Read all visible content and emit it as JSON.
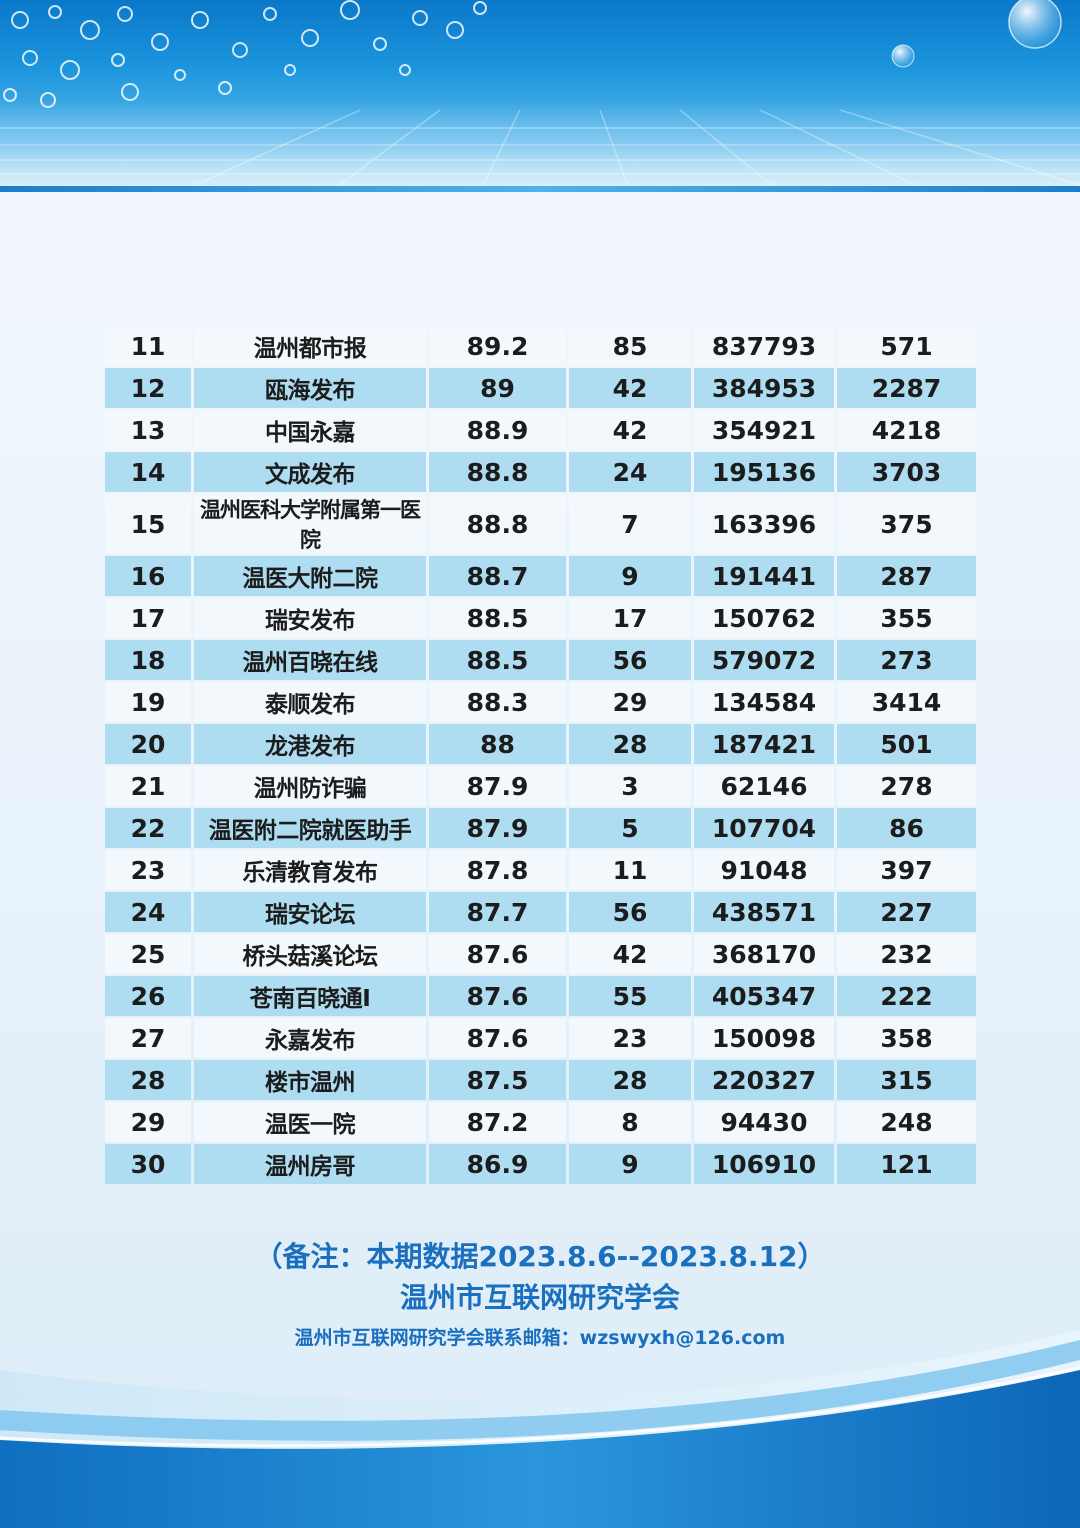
{
  "table": {
    "rows": [
      {
        "rank": "11",
        "name": "温州都市报",
        "score": "89.2",
        "posts": "85",
        "reads": "837793",
        "likes": "571"
      },
      {
        "rank": "12",
        "name": "瓯海发布",
        "score": "89",
        "posts": "42",
        "reads": "384953",
        "likes": "2287"
      },
      {
        "rank": "13",
        "name": "中国永嘉",
        "score": "88.9",
        "posts": "42",
        "reads": "354921",
        "likes": "4218"
      },
      {
        "rank": "14",
        "name": "文成发布",
        "score": "88.8",
        "posts": "24",
        "reads": "195136",
        "likes": "3703"
      },
      {
        "rank": "15",
        "name": "温州医科大学附属第一医院",
        "score": "88.8",
        "posts": "7",
        "reads": "163396",
        "likes": "375"
      },
      {
        "rank": "16",
        "name": "温医大附二院",
        "score": "88.7",
        "posts": "9",
        "reads": "191441",
        "likes": "287"
      },
      {
        "rank": "17",
        "name": "瑞安发布",
        "score": "88.5",
        "posts": "17",
        "reads": "150762",
        "likes": "355"
      },
      {
        "rank": "18",
        "name": "温州百晓在线",
        "score": "88.5",
        "posts": "56",
        "reads": "579072",
        "likes": "273"
      },
      {
        "rank": "19",
        "name": "泰顺发布",
        "score": "88.3",
        "posts": "29",
        "reads": "134584",
        "likes": "3414"
      },
      {
        "rank": "20",
        "name": "龙港发布",
        "score": "88",
        "posts": "28",
        "reads": "187421",
        "likes": "501"
      },
      {
        "rank": "21",
        "name": "温州防诈骗",
        "score": "87.9",
        "posts": "3",
        "reads": "62146",
        "likes": "278"
      },
      {
        "rank": "22",
        "name": "温医附二院就医助手",
        "score": "87.9",
        "posts": "5",
        "reads": "107704",
        "likes": "86"
      },
      {
        "rank": "23",
        "name": "乐清教育发布",
        "score": "87.8",
        "posts": "11",
        "reads": "91048",
        "likes": "397"
      },
      {
        "rank": "24",
        "name": "瑞安论坛",
        "score": "87.7",
        "posts": "56",
        "reads": "438571",
        "likes": "227"
      },
      {
        "rank": "25",
        "name": "桥头菇溪论坛",
        "score": "87.6",
        "posts": "42",
        "reads": "368170",
        "likes": "232"
      },
      {
        "rank": "26",
        "name": "苍南百晓通I",
        "score": "87.6",
        "posts": "55",
        "reads": "405347",
        "likes": "222"
      },
      {
        "rank": "27",
        "name": "永嘉发布",
        "score": "87.6",
        "posts": "23",
        "reads": "150098",
        "likes": "358"
      },
      {
        "rank": "28",
        "name": "楼市温州",
        "score": "87.5",
        "posts": "28",
        "reads": "220327",
        "likes": "315"
      },
      {
        "rank": "29",
        "name": "温医一院",
        "score": "87.2",
        "posts": "8",
        "reads": "94430",
        "likes": "248"
      },
      {
        "rank": "30",
        "name": "温州房哥",
        "score": "86.9",
        "posts": "9",
        "reads": "106910",
        "likes": "121"
      }
    ]
  },
  "footer": {
    "note": "（备注：本期数据2023.8.6--2023.8.12）",
    "organization": "温州市互联网研究学会",
    "contact": "温州市互联网研究学会联系邮箱：wzswyxh@126.com"
  },
  "colors": {
    "banner_blue": "#1b95dd",
    "row_light": "#f3f8fc",
    "row_blue": "#aedcf0",
    "note_text": "#1a6fbf"
  }
}
